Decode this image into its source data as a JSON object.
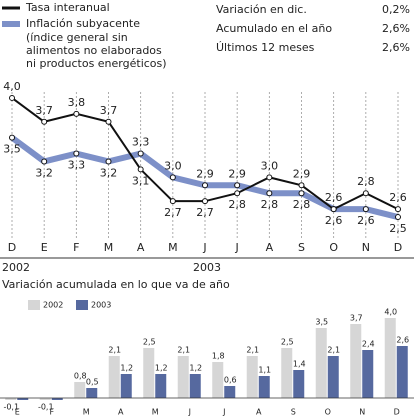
{
  "chart_data": [
    {
      "type": "line",
      "stats": [
        {
          "label": "Variación en dic.",
          "value": "0,2%"
        },
        {
          "label": "Acumulado en el año",
          "value": "2,6%"
        },
        {
          "label": "Últimos 12 meses",
          "value": "2,6%"
        }
      ],
      "categories": [
        "D",
        "E",
        "F",
        "M",
        "A",
        "M",
        "J",
        "J",
        "A",
        "S",
        "O",
        "N",
        "D"
      ],
      "year_labels": [
        "2002",
        "2003"
      ],
      "legend_note": [
        "(índice general sin",
        "alimentos no elaborados",
        "ni productos energéticos)"
      ],
      "ylim": [
        2.4,
        4.1
      ],
      "series": [
        {
          "name": "Tasa interanual",
          "color": "#111111",
          "values": [
            4.0,
            3.7,
            3.8,
            3.7,
            3.1,
            2.7,
            2.7,
            2.8,
            3.0,
            2.9,
            2.6,
            2.8,
            2.6
          ],
          "value_labels": [
            "4,0",
            "3,7",
            "3,8",
            "3,7",
            "3,1",
            "2,7",
            "2,7",
            "2,8",
            "3,0",
            "2,9",
            "2,6",
            "2,8",
            "2,6"
          ]
        },
        {
          "name": "Inflación subyacente",
          "color": "#7d90c8",
          "values": [
            3.5,
            3.2,
            3.3,
            3.2,
            3.3,
            3.0,
            2.9,
            2.9,
            2.8,
            2.8,
            2.6,
            2.6,
            2.5
          ],
          "value_labels": [
            "3,5",
            "3,2",
            "3,3",
            "3,2",
            "3,3",
            "3,0",
            "2,9",
            "2,9",
            "2,8",
            "2,8",
            "2,6",
            "2,6",
            "2,5"
          ]
        }
      ]
    },
    {
      "type": "bar",
      "title": "Variación acumulada en lo que va de año",
      "categories": [
        "E",
        "F",
        "M",
        "A",
        "M",
        "J",
        "J",
        "A",
        "S",
        "O",
        "N",
        "D"
      ],
      "ylim": [
        -0.45,
        4.2
      ],
      "series": [
        {
          "name": "2002",
          "color": "#d6d6d6",
          "values": [
            -0.1,
            -0.1,
            0.8,
            2.1,
            2.5,
            2.1,
            1.8,
            2.1,
            2.5,
            3.5,
            3.7,
            4.0
          ],
          "value_labels": [
            "-0,1",
            "-0,1",
            "0,8",
            "2,1",
            "2,5",
            "2,1",
            "1,8",
            "2,1",
            "2,5",
            "3,5",
            "3,7",
            "4,0"
          ]
        },
        {
          "name": "2003",
          "color": "#56699f",
          "values": [
            -0.1,
            -0.1,
            0.5,
            1.2,
            1.2,
            1.2,
            0.6,
            1.1,
            1.4,
            2.1,
            2.4,
            2.6
          ],
          "value_labels": [
            null,
            null,
            "0,5",
            "1,2",
            "1,2",
            "1,2",
            "0,6",
            "1,1",
            "1,4",
            "2,1",
            "2,4",
            "2,6"
          ]
        }
      ]
    }
  ]
}
